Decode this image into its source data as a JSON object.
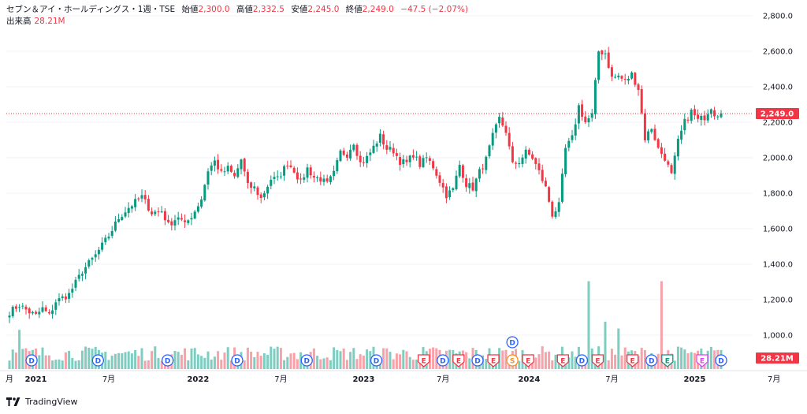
{
  "header": {
    "symbol": "セブン＆アイ・ホールディングス・1週・TSE",
    "open_label": "始値",
    "open": "2,300.0",
    "high_label": "高値",
    "high": "2,332.5",
    "low_label": "安値",
    "low": "2,245.0",
    "close_label": "終値",
    "close": "2,249.0",
    "change": "−47.5 (−2.07%)",
    "volume_label": "出来高",
    "volume": "28.21M"
  },
  "brand": "TradingView",
  "colors": {
    "up": "#089981",
    "down": "#f23645",
    "up_vol": "#7fcdc1",
    "down_vol": "#f7a1a8",
    "event_blue": "#2962ff",
    "event_red": "#f23645",
    "event_orange": "#f7931a",
    "event_green": "#089981",
    "event_purple": "#e040fb"
  },
  "chart_data": {
    "type": "candlestick",
    "price_axis": {
      "min": 1000,
      "max": 2800,
      "ticks": [
        "2,800.0",
        "2,600.0",
        "2,400.0",
        "2,200.0",
        "2,000.0",
        "1,800.0",
        "1,600.0",
        "1,400.0",
        "1,200.0",
        "1,000.0"
      ],
      "tick_values": [
        2800,
        2600,
        2400,
        2200,
        2000,
        1800,
        1600,
        1400,
        1200,
        1000
      ]
    },
    "time_axis": {
      "labels": [
        "月",
        "2021",
        "7月",
        "2022",
        "7月",
        "2023",
        "7月",
        "2024",
        "7月",
        "2025",
        "7月"
      ],
      "bold": [
        false,
        true,
        false,
        true,
        false,
        true,
        false,
        true,
        false,
        true,
        false
      ],
      "positions": [
        0,
        8,
        30,
        57,
        82,
        107,
        131,
        157,
        182,
        207,
        231
      ]
    },
    "last_price_label": "2,249.0",
    "last_price": 2249,
    "last_volume_label": "28.21M",
    "price_anchors": [
      [
        0,
        1130
      ],
      [
        3,
        1170
      ],
      [
        6,
        1130
      ],
      [
        8,
        1110
      ],
      [
        10,
        1150
      ],
      [
        12,
        1110
      ],
      [
        14,
        1190
      ],
      [
        18,
        1230
      ],
      [
        22,
        1360
      ],
      [
        26,
        1450
      ],
      [
        30,
        1560
      ],
      [
        33,
        1660
      ],
      [
        36,
        1720
      ],
      [
        40,
        1780
      ],
      [
        43,
        1690
      ],
      [
        46,
        1700
      ],
      [
        48,
        1620
      ],
      [
        51,
        1670
      ],
      [
        53,
        1620
      ],
      [
        56,
        1700
      ],
      [
        58,
        1770
      ],
      [
        60,
        1930
      ],
      [
        62,
        1980
      ],
      [
        64,
        1910
      ],
      [
        66,
        1940
      ],
      [
        68,
        1890
      ],
      [
        70,
        1990
      ],
      [
        72,
        1840
      ],
      [
        74,
        1830
      ],
      [
        76,
        1770
      ],
      [
        79,
        1880
      ],
      [
        81,
        1880
      ],
      [
        84,
        1970
      ],
      [
        86,
        1930
      ],
      [
        88,
        1860
      ],
      [
        90,
        1940
      ],
      [
        92,
        1890
      ],
      [
        94,
        1880
      ],
      [
        96,
        1850
      ],
      [
        98,
        1910
      ],
      [
        100,
        2030
      ],
      [
        102,
        2020
      ],
      [
        104,
        2090
      ],
      [
        106,
        1970
      ],
      [
        108,
        2000
      ],
      [
        110,
        2060
      ],
      [
        112,
        2120
      ],
      [
        114,
        2050
      ],
      [
        116,
        2040
      ],
      [
        118,
        1980
      ],
      [
        120,
        1970
      ],
      [
        122,
        2020
      ],
      [
        124,
        1960
      ],
      [
        126,
        2000
      ],
      [
        128,
        1950
      ],
      [
        130,
        1870
      ],
      [
        132,
        1790
      ],
      [
        134,
        1820
      ],
      [
        136,
        1960
      ],
      [
        138,
        1850
      ],
      [
        140,
        1830
      ],
      [
        142,
        1920
      ],
      [
        144,
        1990
      ],
      [
        146,
        2120
      ],
      [
        148,
        2220
      ],
      [
        150,
        2150
      ],
      [
        152,
        1960
      ],
      [
        154,
        1980
      ],
      [
        156,
        2030
      ],
      [
        158,
        2000
      ],
      [
        160,
        1920
      ],
      [
        162,
        1830
      ],
      [
        164,
        1680
      ],
      [
        166,
        1730
      ],
      [
        168,
        2050
      ],
      [
        170,
        2110
      ],
      [
        172,
        2290
      ],
      [
        174,
        2200
      ],
      [
        176,
        2240
      ],
      [
        178,
        2600
      ],
      [
        180,
        2590
      ],
      [
        182,
        2450
      ],
      [
        184,
        2460
      ],
      [
        186,
        2430
      ],
      [
        188,
        2470
      ],
      [
        190,
        2390
      ],
      [
        192,
        2110
      ],
      [
        194,
        2170
      ],
      [
        196,
        2050
      ],
      [
        198,
        2000
      ],
      [
        200,
        1900
      ],
      [
        202,
        2090
      ],
      [
        204,
        2200
      ],
      [
        206,
        2260
      ],
      [
        208,
        2210
      ],
      [
        210,
        2230
      ],
      [
        212,
        2290
      ],
      [
        213,
        2249
      ]
    ],
    "volume_scale_max": 140,
    "volume_note": "volume in millions, approximate",
    "volume_spikes": [
      [
        3,
        58
      ],
      [
        175,
        130
      ],
      [
        180,
        70
      ],
      [
        184,
        60
      ],
      [
        197,
        130
      ],
      [
        215,
        28.21
      ]
    ],
    "events": [
      {
        "type": "D",
        "x": 7,
        "color": "blue"
      },
      {
        "type": "D",
        "x": 28,
        "color": "blue"
      },
      {
        "type": "D",
        "x": 50,
        "color": "blue"
      },
      {
        "type": "D",
        "x": 72,
        "color": "blue"
      },
      {
        "type": "D",
        "x": 94,
        "color": "blue"
      },
      {
        "type": "D",
        "x": 116,
        "color": "blue"
      },
      {
        "type": "E",
        "x": 131,
        "color": "red"
      },
      {
        "type": "D",
        "x": 137,
        "color": "blue"
      },
      {
        "type": "E",
        "x": 142,
        "color": "red"
      },
      {
        "type": "D",
        "x": 148,
        "color": "blue"
      },
      {
        "type": "E",
        "x": 153,
        "color": "red"
      },
      {
        "type": "S",
        "x": 159,
        "color": "orange"
      },
      {
        "type": "E",
        "x": 164,
        "color": "red"
      },
      {
        "type": "E",
        "x": 175,
        "color": "red"
      },
      {
        "type": "D",
        "x": 181,
        "color": "blue"
      },
      {
        "type": "E",
        "x": 186,
        "color": "red"
      },
      {
        "type": "E",
        "x": 197,
        "color": "red"
      },
      {
        "type": "D",
        "x": 203,
        "color": "blue"
      },
      {
        "type": "E",
        "x": 208,
        "color": "green"
      },
      {
        "type": "E",
        "x": 219,
        "color": "purple"
      },
      {
        "type": "D",
        "x": 225,
        "color": "blue"
      },
      {
        "type": "D",
        "x": 159,
        "color": "blue",
        "upper": true
      }
    ]
  }
}
